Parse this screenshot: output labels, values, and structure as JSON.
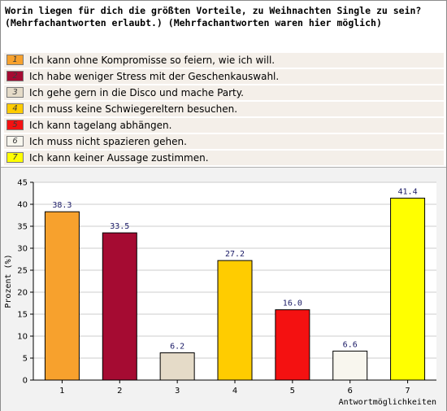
{
  "question": {
    "line1": "Worin liegen für dich die größten Vorteile, zu Weihnachten Single zu sein?",
    "line2": "(Mehrfachantworten erlaubt.) (Mehrfachantworten waren hier möglich)"
  },
  "legend": [
    {
      "num": "1",
      "label": "Ich kann ohne Kompromisse so feiern, wie ich will.",
      "color": "#f7a12d",
      "numColor": "#3a3a3a"
    },
    {
      "num": "2",
      "label": "Ich habe weniger Stress mit der Geschenkauswahl.",
      "color": "#a50b32",
      "numColor": "#3a3a3a"
    },
    {
      "num": "3",
      "label": "Ich gehe gern in die Disco und mache Party.",
      "color": "#e5dbc8",
      "numColor": "#3a3a3a"
    },
    {
      "num": "4",
      "label": "Ich muss keine Schwiegereltern besuchen.",
      "color": "#ffcc00",
      "numColor": "#3a3a3a"
    },
    {
      "num": "5",
      "label": "Ich kann tagelang abhängen.",
      "color": "#f41111",
      "numColor": "#3a3a3a"
    },
    {
      "num": "6",
      "label": "Ich muss nicht spazieren gehen.",
      "color": "#f8f6ee",
      "numColor": "#3a3a3a"
    },
    {
      "num": "7",
      "label": "Ich kann keiner Aussage zustimmen.",
      "color": "#ffff00",
      "numColor": "#3a3a3a"
    }
  ],
  "chart_data": {
    "type": "bar",
    "categories": [
      "1",
      "2",
      "3",
      "4",
      "5",
      "6",
      "7"
    ],
    "values": [
      38.3,
      33.5,
      6.2,
      27.2,
      16.0,
      6.6,
      41.4
    ],
    "value_labels": [
      "38.3",
      "33.5",
      "6.2",
      "27.2",
      "16.0",
      "6.6",
      "41.4"
    ],
    "colors": [
      "#f7a12d",
      "#a50b32",
      "#e5dbc8",
      "#ffcc00",
      "#f41111",
      "#f8f6ee",
      "#ffff00"
    ],
    "ylabel": "Prozent (%)",
    "xlabel": "Antwortmöglichkeiten",
    "ylim": [
      0,
      45
    ],
    "yticks": [
      "0",
      "5",
      "10",
      "15",
      "20",
      "25",
      "30",
      "35",
      "40",
      "45"
    ],
    "grid": true,
    "grid_color": "#cccccc"
  }
}
